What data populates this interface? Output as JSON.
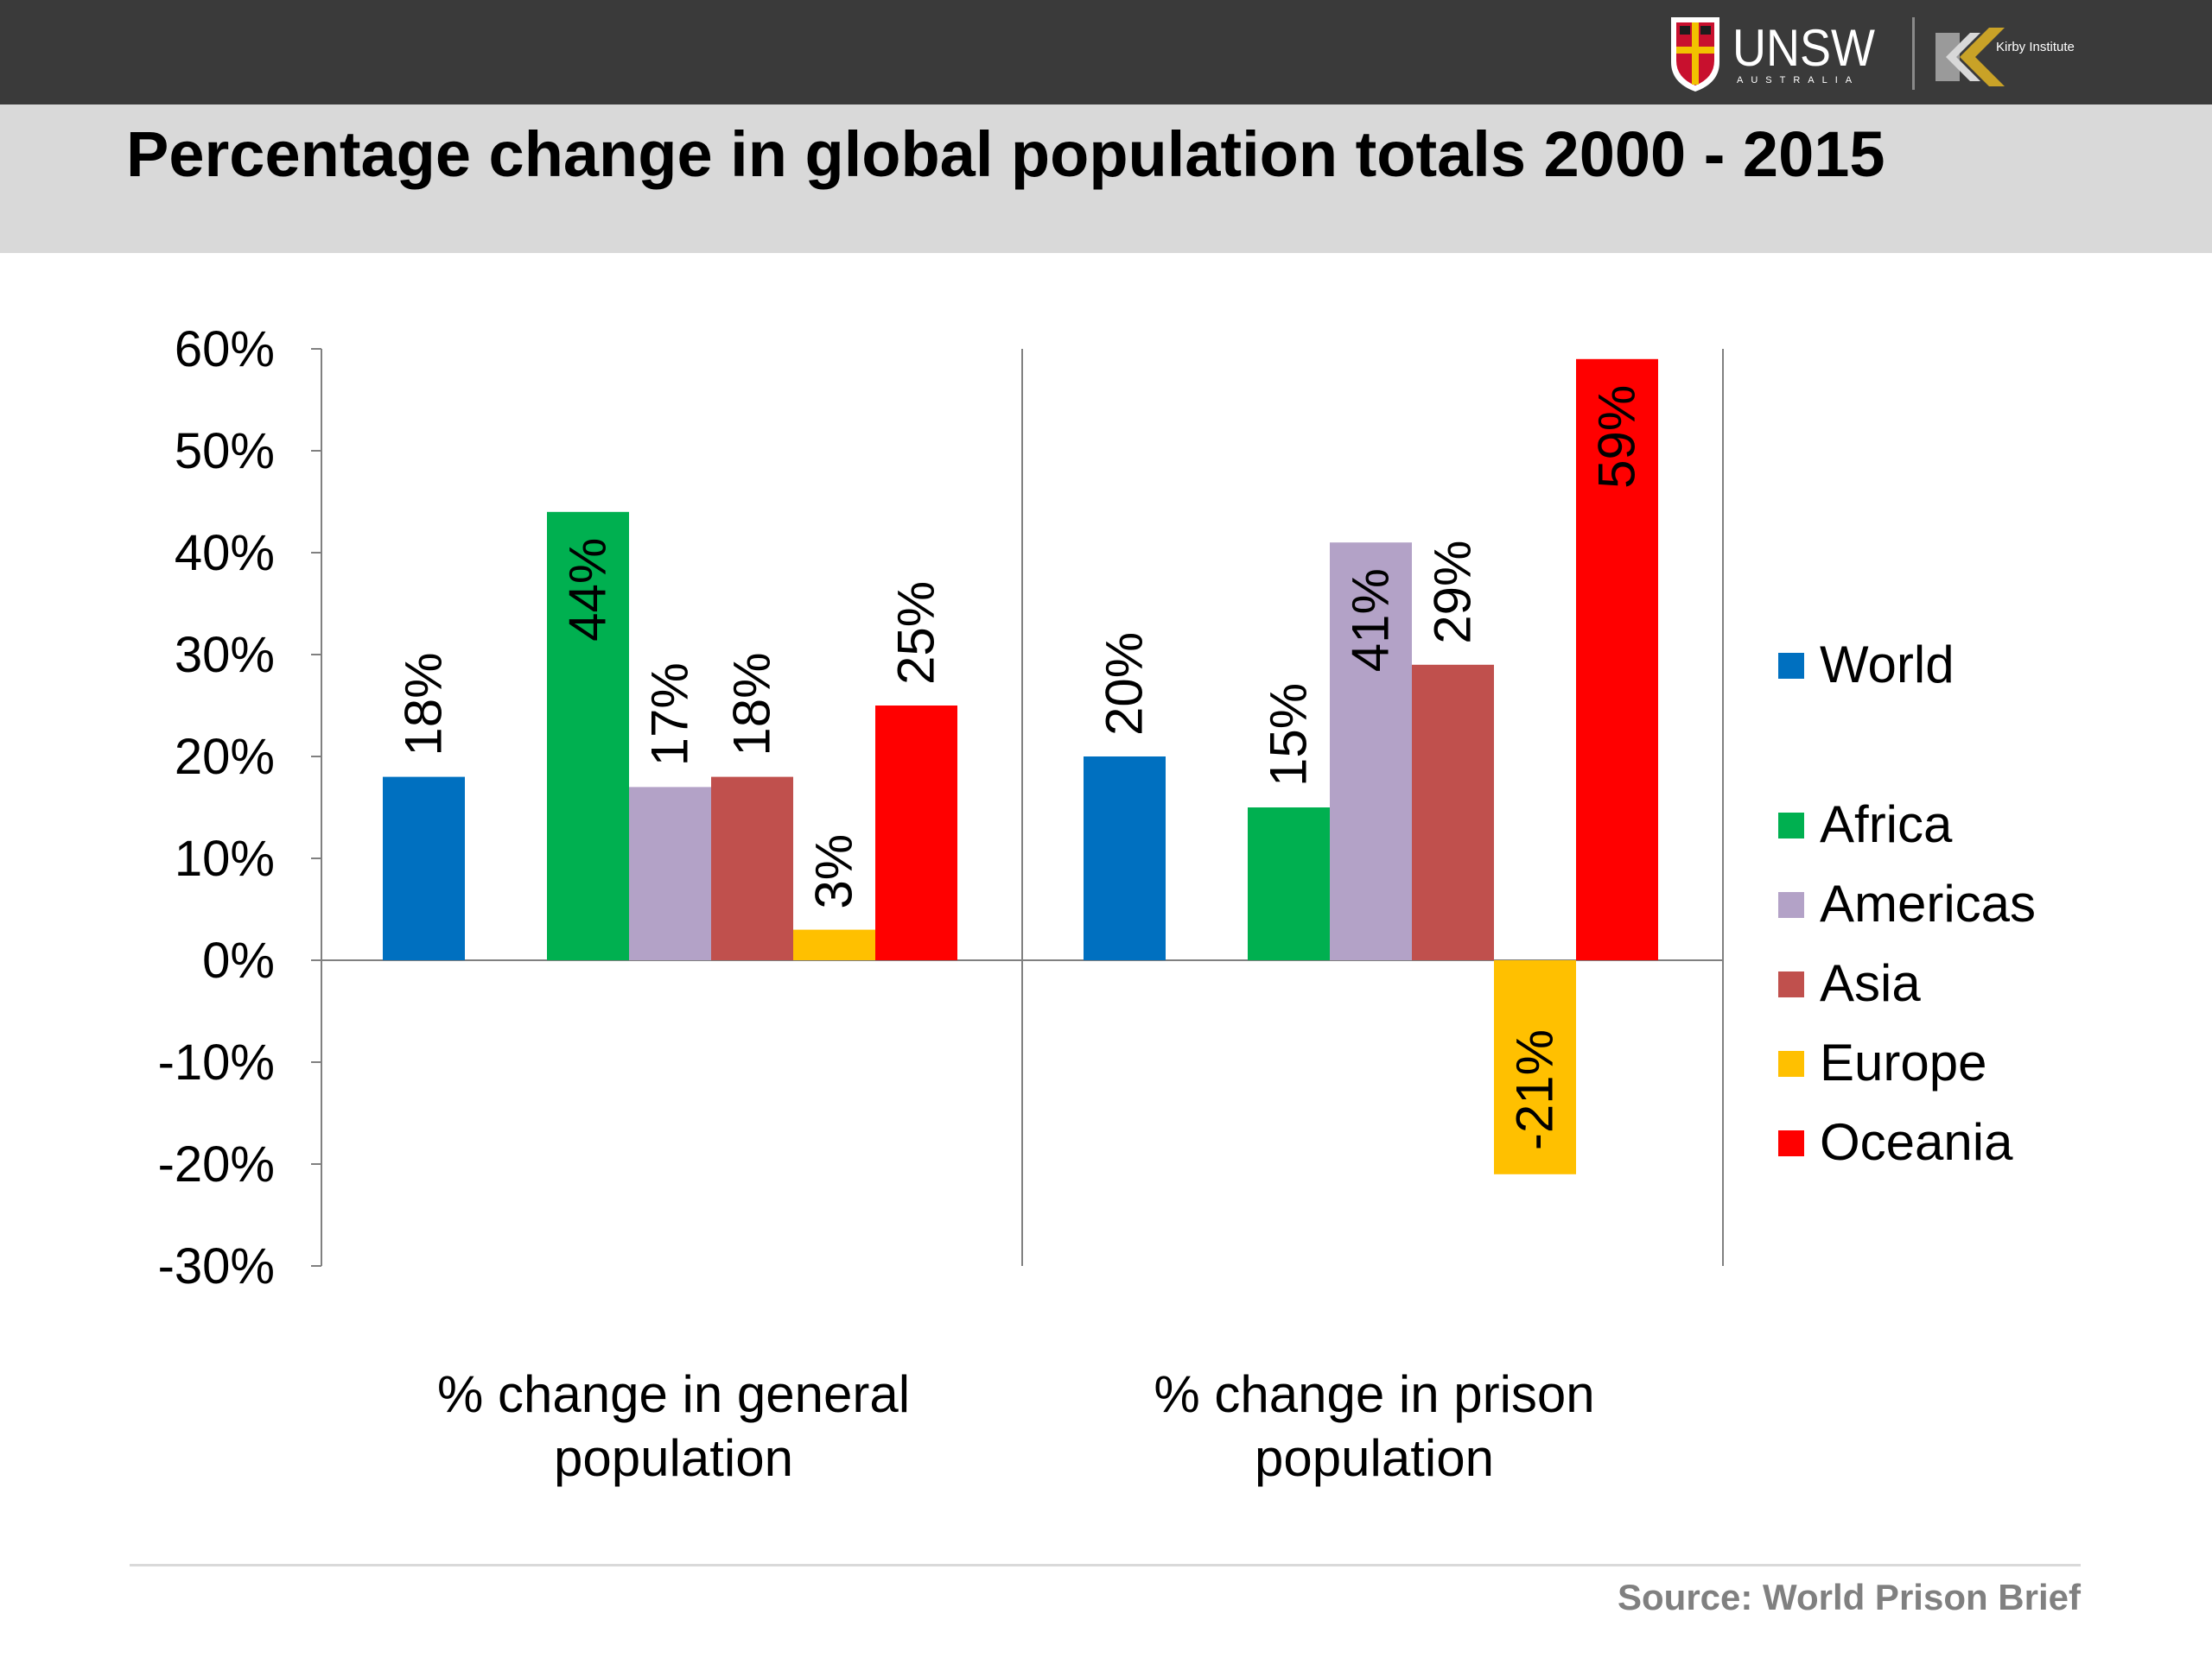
{
  "header": {
    "title": "Percentage change in global population totals 2000 - 2015",
    "logo_unsw_text": "UNSW",
    "logo_unsw_subtext": "AUSTRALIA",
    "logo_kirby_text": "Kirby Institute"
  },
  "footer": {
    "source": "Source: World Prison Brief"
  },
  "colors": {
    "header_bar": "#3a3a3a",
    "title_band": "#d9d9d9",
    "World": "#0070c0",
    "Africa": "#00b050",
    "Americas": "#b3a2c7",
    "Asia": "#c0504d",
    "Europe": "#ffc000",
    "Oceania": "#ff0000"
  },
  "chart_data": {
    "type": "bar",
    "title": "",
    "xlabel": "",
    "ylabel": "",
    "ylim": [
      -30,
      60
    ],
    "y_tick_step": 10,
    "y_tick_labels": [
      "60%",
      "50%",
      "40%",
      "30%",
      "20%",
      "10%",
      "0%",
      "-10%",
      "-20%",
      "-30%"
    ],
    "grid": false,
    "legend_position": "right",
    "categories": [
      "% change in general population",
      "% change in prison population"
    ],
    "series": [
      {
        "name": "World",
        "values": [
          18,
          20
        ],
        "labels": [
          "18%",
          "20%"
        ]
      },
      {
        "name": "Africa",
        "values": [
          44,
          15
        ],
        "labels": [
          "44%",
          "15%"
        ]
      },
      {
        "name": "Americas",
        "values": [
          17,
          41
        ],
        "labels": [
          "17%",
          "41%"
        ]
      },
      {
        "name": "Asia",
        "values": [
          18,
          29
        ],
        "labels": [
          "18%",
          "29%"
        ]
      },
      {
        "name": "Europe",
        "values": [
          3,
          -21
        ],
        "labels": [
          "3%",
          "-21%"
        ]
      },
      {
        "name": "Oceania",
        "values": [
          25,
          59
        ],
        "labels": [
          "25%",
          "59%"
        ]
      }
    ]
  }
}
